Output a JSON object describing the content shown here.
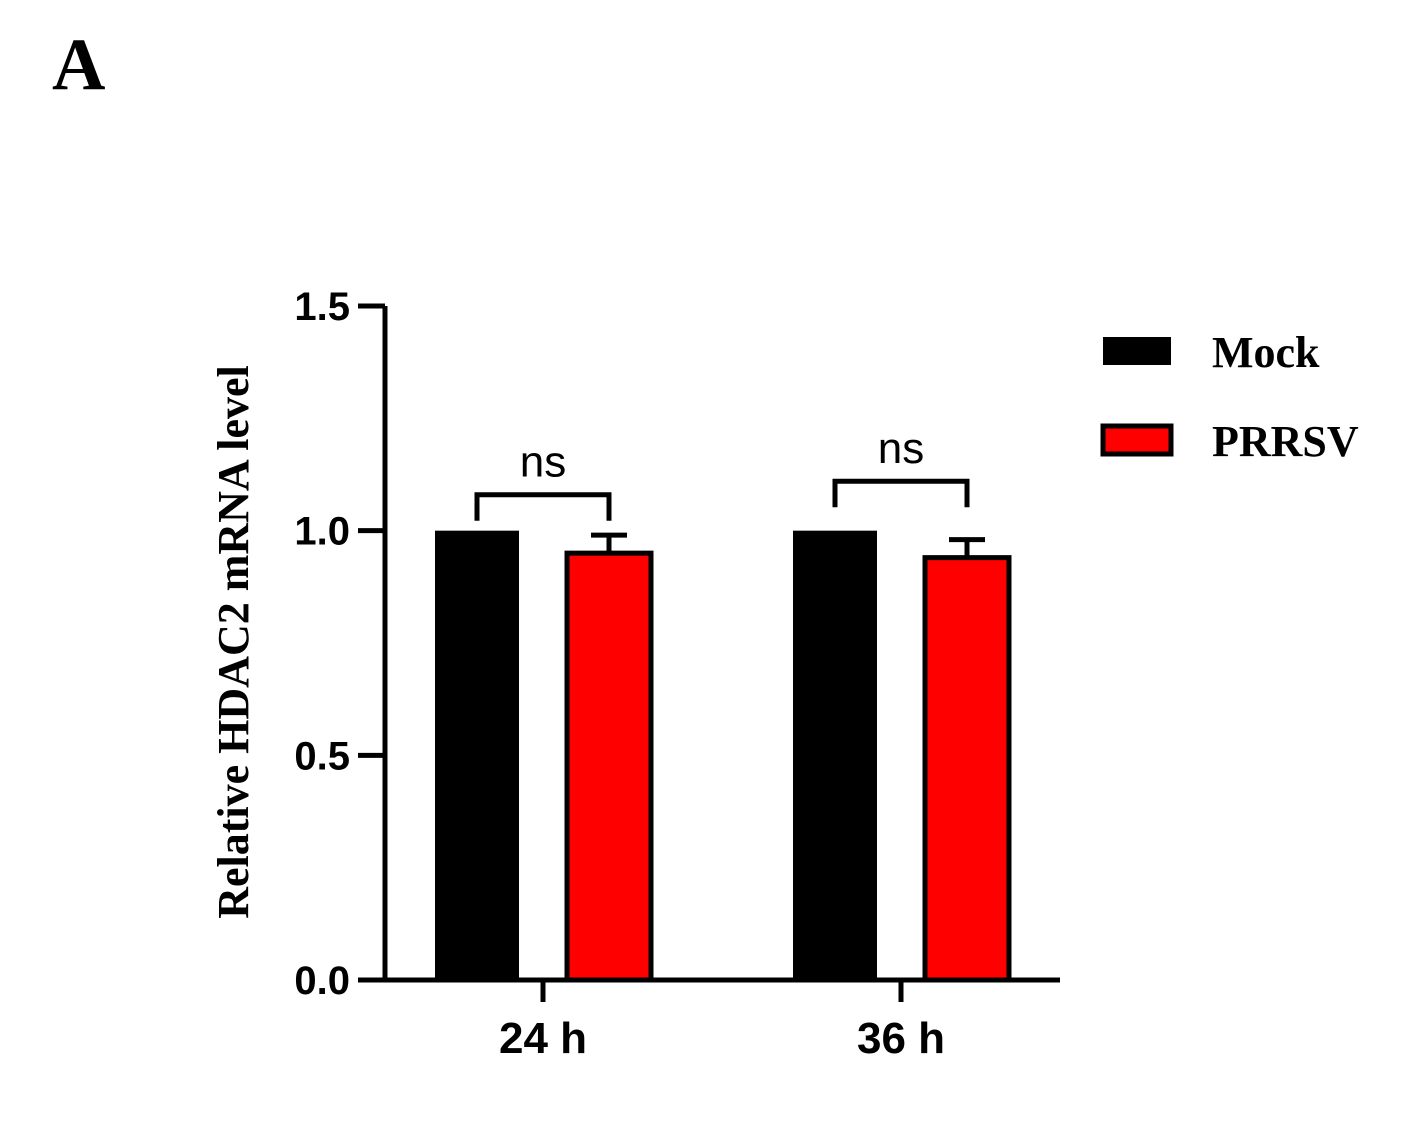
{
  "panel_label": "A",
  "colors": {
    "mock": "#000000",
    "prrsv": "#ff0000",
    "axis": "#000000"
  },
  "chart_data": {
    "type": "bar",
    "title": "",
    "xlabel": "",
    "ylabel": "Relative HDAC2 mRNA level",
    "categories": [
      "24 h",
      "36 h"
    ],
    "series": [
      {
        "name": "Mock",
        "values": [
          1.0,
          1.0
        ],
        "errors": [
          0,
          0
        ],
        "color": "#000000"
      },
      {
        "name": "PRRSV",
        "values": [
          0.95,
          0.94
        ],
        "errors": [
          0.04,
          0.04
        ],
        "color": "#ff0000"
      }
    ],
    "ylim": [
      0,
      1.5
    ],
    "yticks": [
      0.0,
      0.5,
      1.0,
      1.5
    ],
    "ytick_labels": [
      "0.0",
      "0.5",
      "1.0",
      "1.5"
    ],
    "legend_position": "top-right",
    "grid": false,
    "annotations": [
      {
        "category": "24 h",
        "text": "ns",
        "value": 1.08
      },
      {
        "category": "36 h",
        "text": "ns",
        "value": 1.11
      }
    ]
  }
}
